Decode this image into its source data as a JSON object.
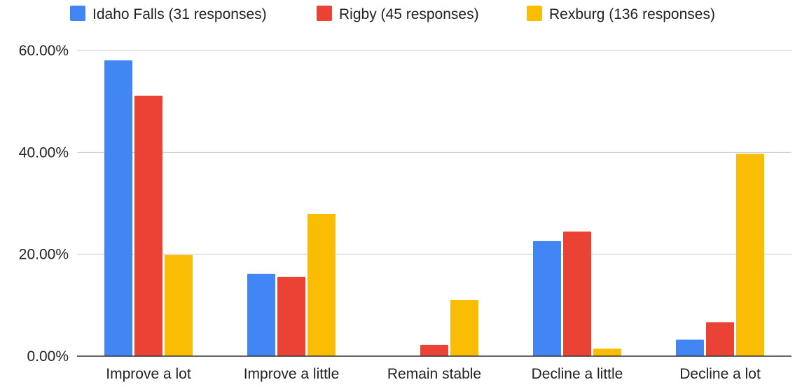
{
  "chart_data": {
    "type": "bar",
    "categories": [
      "Improve a lot",
      "Improve a little",
      "Remain stable",
      "Decline a little",
      "Decline a lot"
    ],
    "series": [
      {
        "name": "Idaho Falls (31 responses)",
        "color": "#4285F4",
        "values": [
          58.06,
          16.13,
          0,
          22.58,
          3.23
        ]
      },
      {
        "name": "Rigby (45 responses)",
        "color": "#EA4335",
        "values": [
          51.11,
          15.56,
          2.22,
          24.44,
          6.67
        ]
      },
      {
        "name": "Rexburg (136 responses)",
        "color": "#FBBC04",
        "values": [
          19.85,
          27.94,
          11.03,
          1.47,
          39.71
        ]
      }
    ],
    "y_ticks": [
      "0.00%",
      "20.00%",
      "40.00%",
      "60.00%"
    ],
    "y_tick_values": [
      0,
      20,
      40,
      60
    ],
    "ylim": [
      0,
      60
    ],
    "grid": true,
    "legend_position": "top"
  }
}
